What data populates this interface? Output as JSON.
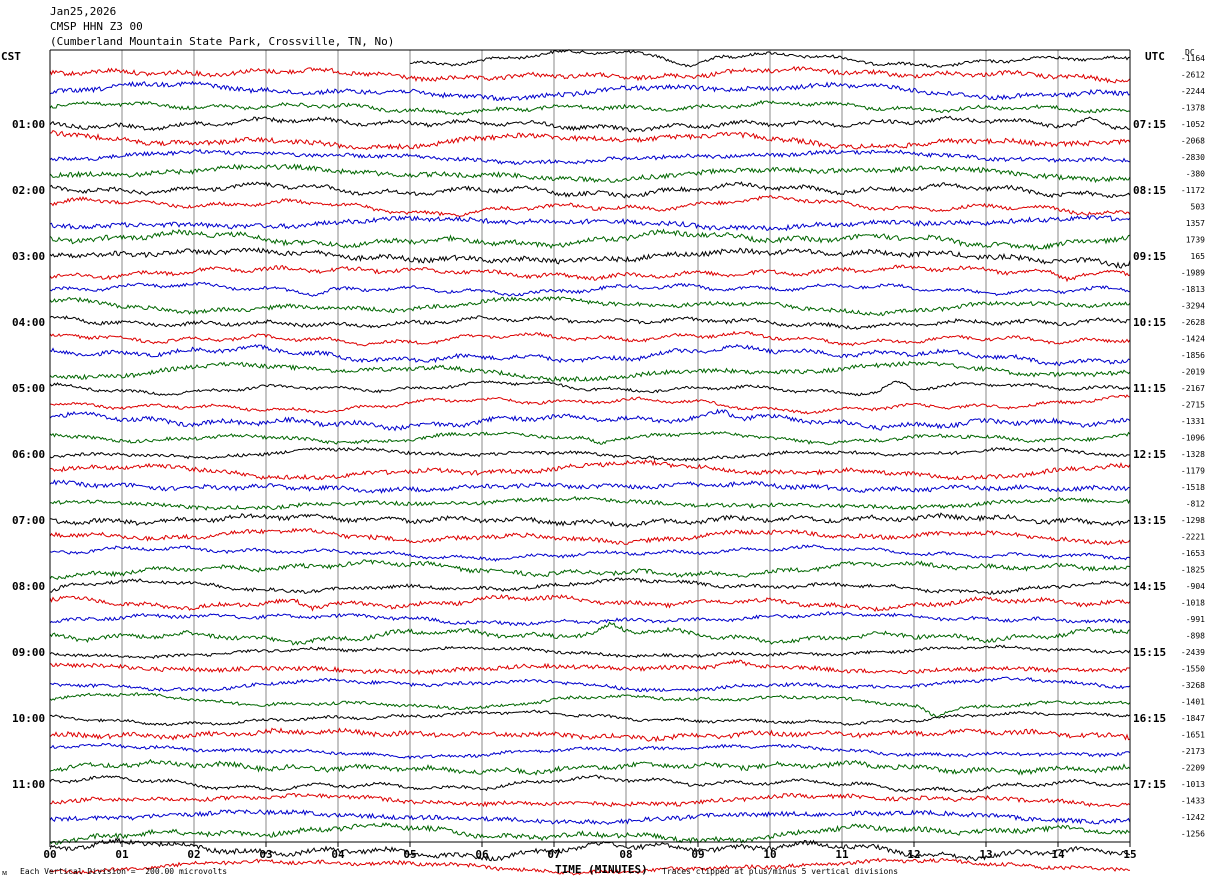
{
  "header": {
    "date": "Jan25,2026",
    "station": "CMSP HHN Z3 00",
    "location": "(Cumberland Mountain State Park, Crossville, TN, No)"
  },
  "left_zone": "CST",
  "right_zone": "UTC",
  "dc_header": "DC",
  "footer": {
    "scale_note": "Each Vertical Division =  200.00 microvolts",
    "x_title": "TIME (MINUTES)",
    "clip_note": "Traces clipped at plus/minus 5 vertical divisions",
    "corner_mark": "ᴍ"
  },
  "chart_data": {
    "type": "line",
    "title": "CMSP HHN Z3 00",
    "xlabel": "TIME (MINUTES)",
    "ylabel": "",
    "x_ticks": [
      "00",
      "01",
      "02",
      "03",
      "04",
      "05",
      "06",
      "07",
      "08",
      "09",
      "10",
      "11",
      "12",
      "13",
      "14",
      "15"
    ],
    "xlim": [
      0,
      15
    ],
    "grid_x": true,
    "trace_minutes": 15,
    "trace_count": 50,
    "trace_colors": [
      "#000000",
      "#dd0000",
      "#0000cc",
      "#006600"
    ],
    "left_hour_labels": [
      "01:00",
      "02:00",
      "03:00",
      "04:00",
      "05:00",
      "06:00",
      "07:00",
      "08:00",
      "09:00",
      "10:00",
      "11:00"
    ],
    "right_hour_labels": [
      "07:15",
      "08:15",
      "09:15",
      "10:15",
      "11:15",
      "12:15",
      "13:15",
      "14:15",
      "15:15",
      "16:15",
      "17:15"
    ],
    "dc_offsets": [
      "-1164",
      "-2612",
      "-2244",
      "-1378",
      "-1052",
      "-2068",
      "-2830",
      "-380",
      "-1172",
      "503",
      "1357",
      "1739",
      "165",
      "-1989",
      "-1813",
      "-3294",
      "-2628",
      "-1424",
      "-1856",
      "-2019",
      "-2167",
      "-2715",
      "-1331",
      "-1096",
      "-1328",
      "-1179",
      "-1518",
      "-812",
      "-1298",
      "-2221",
      "-1653",
      "-1825",
      "-904",
      "-1018",
      "-991",
      "-898",
      "-2439",
      "-1550",
      "-3268",
      "-1401",
      "-1847",
      "-1651",
      "-2173",
      "-2209",
      "-1013",
      "-1433",
      "-1242",
      "-1256"
    ],
    "scale_microvolts_per_division": 200.0
  }
}
